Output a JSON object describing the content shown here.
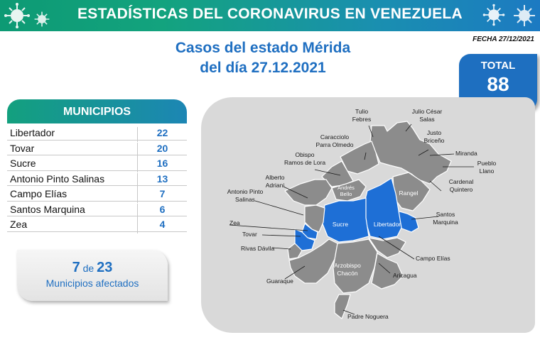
{
  "banner": {
    "title": "ESTADÍSTICAS DEL CORONAVIRUS EN VENEZUELA"
  },
  "date": "FECHA 27/12/2021",
  "headline": {
    "line1": "Casos del estado Mérida",
    "line2": "del día 27.12.2021"
  },
  "total": {
    "label": "TOTAL",
    "value": "88"
  },
  "municipios": {
    "header": "MUNICIPIOS",
    "rows": [
      {
        "name": "Libertador",
        "count": "22"
      },
      {
        "name": "Tovar",
        "count": "20"
      },
      {
        "name": "Sucre",
        "count": "16"
      },
      {
        "name": "Antonio Pinto Salinas",
        "count": "13"
      },
      {
        "name": "Campo Elías",
        "count": "7"
      },
      {
        "name": "Santos Marquina",
        "count": "6"
      },
      {
        "name": "Zea",
        "count": "4"
      }
    ]
  },
  "affected": {
    "count": "7",
    "connector": "de",
    "total": "23",
    "label": "Municipios afectados"
  },
  "map": {
    "colors": {
      "affected": "#1e6fd6",
      "unaffected": "#8c8c8c",
      "borders": "#ffffff"
    },
    "labels": {
      "tulio_febres": [
        "Tulio",
        "Febres"
      ],
      "julio_cesar_salas": [
        "Julio César",
        "Salas"
      ],
      "justo_briceno": [
        "Justo",
        "Briceño"
      ],
      "caracciolo_parra_olmedo": [
        "Caracciolo",
        "Parra Olmedo"
      ],
      "miranda": "Miranda",
      "obispo_ramos_de_lora": [
        "Obispo",
        "Ramos de Lora"
      ],
      "pueblo_llano": [
        "Pueblo",
        "Llano"
      ],
      "alberto_adriani": [
        "Alberto",
        "Adriani"
      ],
      "cardenal_quintero": [
        "Cardenal",
        "Quintero"
      ],
      "andres_bello": [
        "Andrés",
        "Bello"
      ],
      "rangel": "Rangel",
      "antonio_pinto_salinas": [
        "Antonio Pinto",
        "Salinas"
      ],
      "santos_marquina": [
        "Santos",
        "Marquina"
      ],
      "sucre": "Sucre",
      "libertador": "Libertador",
      "zea": "Zea",
      "tovar": "Tovar",
      "rivas_davila": "Rivas Dávila",
      "campo_elias": "Campo Elías",
      "arzobispo_chacon": [
        "Arzobispo",
        "Chacón"
      ],
      "aricagua": "Aricagua",
      "guaraque": "Guaraque",
      "padre_noguera": "Padre Noguera"
    }
  }
}
